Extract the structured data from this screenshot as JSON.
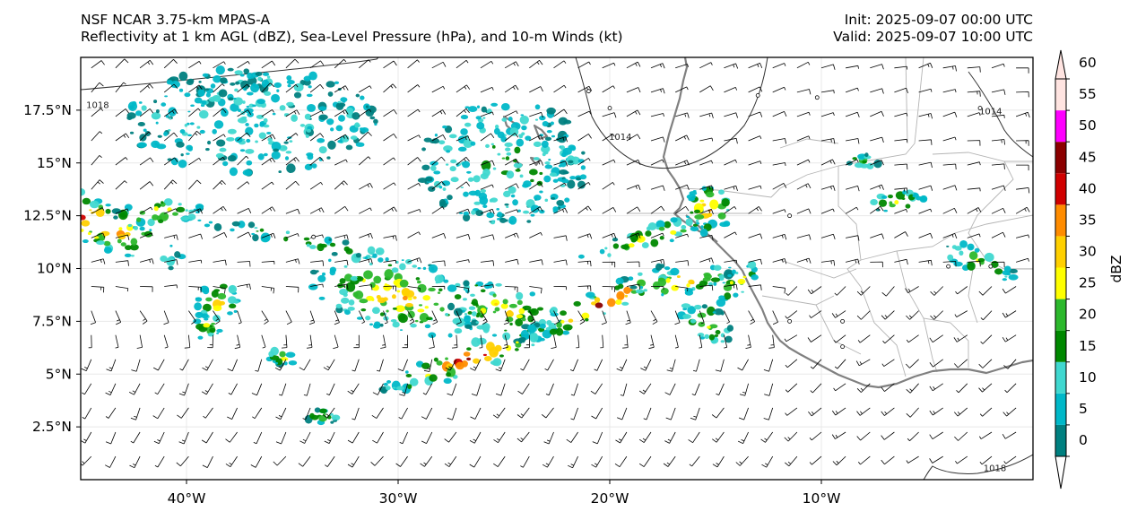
{
  "header": {
    "model": "NSF NCAR 3.75-km MPAS-A",
    "fields": "Reflectivity at 1 km AGL (dBZ), Sea-Level Pressure (hPa), and 10-m Winds (kt)",
    "init": "Init: 2025-09-07 00:00 UTC",
    "valid": "Valid: 2025-09-07 10:00 UTC"
  },
  "map": {
    "lon_range": [
      -45,
      0
    ],
    "lat_range": [
      0,
      20
    ],
    "x_ticks": [
      {
        "lon": -40,
        "label": "40°W"
      },
      {
        "lon": -30,
        "label": "30°W"
      },
      {
        "lon": -20,
        "label": "20°W"
      },
      {
        "lon": -10,
        "label": "10°W"
      }
    ],
    "y_ticks": [
      {
        "lat": 2.5,
        "label": "2.5°N"
      },
      {
        "lat": 5,
        "label": "5°N"
      },
      {
        "lat": 7.5,
        "label": "7.5°N"
      },
      {
        "lat": 10,
        "label": "10°N"
      },
      {
        "lat": 12.5,
        "label": "12.5°N"
      },
      {
        "lat": 15,
        "label": "15°N"
      },
      {
        "lat": 17.5,
        "label": "17.5°N"
      }
    ],
    "isobar_labels": [
      {
        "value": "1018",
        "lon": -44.2,
        "lat": 17.6
      },
      {
        "value": "1014",
        "lon": -19.5,
        "lat": 16.1
      },
      {
        "value": "1014",
        "lon": -2.0,
        "lat": 17.3
      },
      {
        "value": "1018",
        "lon": -1.8,
        "lat": 0.4
      }
    ]
  },
  "colorbar": {
    "label": "dBZ",
    "levels": [
      0,
      5,
      10,
      15,
      20,
      25,
      30,
      35,
      40,
      45,
      50,
      55,
      60
    ],
    "level_labels": [
      "0",
      "5",
      "10",
      "15",
      "20",
      "25",
      "30",
      "35",
      "40",
      "45",
      "50",
      "55",
      "60"
    ],
    "colors": [
      "#008080",
      "#00b8c8",
      "#40d8d0",
      "#008800",
      "#2cb82c",
      "#ffff00",
      "#ffd000",
      "#ff8c00",
      "#d00000",
      "#8b0000",
      "#ff00ff",
      "#ffe4e1"
    ]
  },
  "colors": {
    "coast": "#808080",
    "borders": "#b0b0b0",
    "isobar": "#333333",
    "barb": "#000000",
    "grid": "#e8e8e8"
  }
}
